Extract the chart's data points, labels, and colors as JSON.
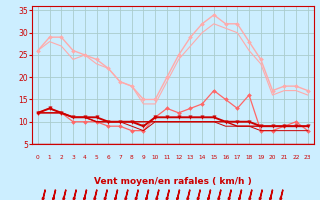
{
  "x": [
    0,
    1,
    2,
    3,
    4,
    5,
    6,
    7,
    8,
    9,
    10,
    11,
    12,
    13,
    14,
    15,
    16,
    17,
    18,
    19,
    20,
    21,
    22,
    23
  ],
  "line1": [
    26,
    29,
    29,
    26,
    25,
    24,
    22,
    19,
    18,
    15,
    15,
    20,
    25,
    29,
    32,
    34,
    32,
    32,
    28,
    24,
    17,
    18,
    18,
    17
  ],
  "line2": [
    26,
    28,
    27,
    24,
    25,
    23,
    22,
    19,
    18,
    14,
    14,
    19,
    24,
    27,
    30,
    32,
    31,
    30,
    26,
    23,
    16,
    17,
    17,
    16
  ],
  "line3": [
    12,
    13,
    12,
    10,
    10,
    10,
    9,
    9,
    8,
    8,
    11,
    13,
    12,
    13,
    14,
    17,
    15,
    13,
    16,
    8,
    8,
    9,
    10,
    8
  ],
  "line4": [
    12,
    13,
    12,
    11,
    11,
    11,
    10,
    10,
    10,
    9,
    11,
    11,
    11,
    11,
    11,
    11,
    10,
    10,
    10,
    9,
    9,
    9,
    9,
    9
  ],
  "line5": [
    12,
    12,
    12,
    11,
    11,
    10,
    10,
    10,
    10,
    10,
    10,
    10,
    10,
    10,
    10,
    10,
    10,
    9,
    9,
    9,
    9,
    9,
    9,
    9
  ],
  "line6": [
    12,
    12,
    12,
    11,
    11,
    10,
    10,
    10,
    9,
    8,
    10,
    10,
    10,
    10,
    10,
    10,
    9,
    9,
    9,
    8,
    8,
    8,
    8,
    8
  ],
  "xlabel": "Vent moyen/en rafales ( km/h )",
  "bg_color": "#cceeff",
  "grid_color": "#aacccc",
  "line1_color": "#ffaaaa",
  "line2_color": "#ffaaaa",
  "line3_color": "#ff6666",
  "line4_color": "#cc0000",
  "line5_color": "#cc0000",
  "line6_color": "#cc0000",
  "ylim": [
    5,
    36
  ],
  "yticks": [
    5,
    10,
    15,
    20,
    25,
    30,
    35
  ],
  "xlim": [
    -0.5,
    23.5
  ]
}
